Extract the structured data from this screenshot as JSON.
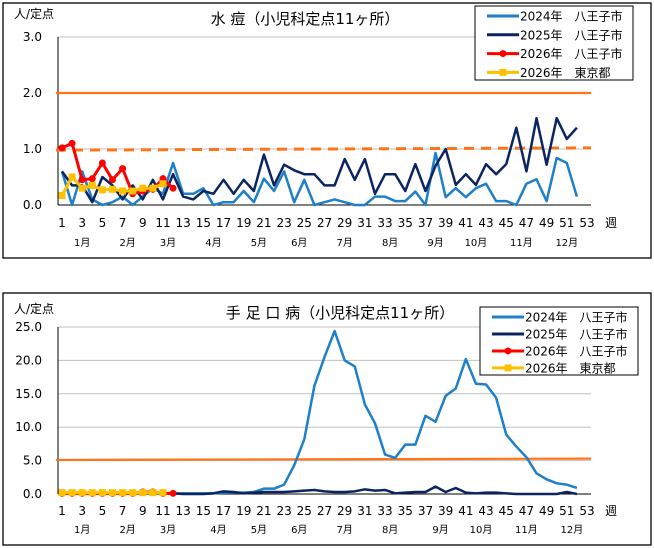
{
  "colors": {
    "y2024": "#1f7fc8",
    "y2025": "#0c2560",
    "y2026": "#ff0000",
    "tokyo": "#ffc000",
    "alert": "#ff7419",
    "grid": "#c0c0c0"
  },
  "chart_data": [
    {
      "type": "line",
      "title": "水 痘（小児科定点11ヶ所）",
      "ylabel": "人/定点",
      "xlabel": "週",
      "ylim": [
        0,
        3
      ],
      "yticks": [
        "0.0",
        "1.0",
        "2.0",
        "3.0"
      ],
      "ytick_values": [
        0,
        1,
        2,
        3
      ],
      "xticks": [
        1,
        3,
        5,
        7,
        9,
        11,
        13,
        15,
        17,
        19,
        21,
        23,
        25,
        27,
        29,
        31,
        33,
        35,
        37,
        39,
        41,
        43,
        45,
        47,
        49,
        51,
        53
      ],
      "xlim": [
        1,
        53
      ],
      "months": [
        {
          "label": "1月",
          "week": 3
        },
        {
          "label": "2月",
          "week": 7.5
        },
        {
          "label": "3月",
          "week": 11.5
        },
        {
          "label": "4月",
          "week": 16
        },
        {
          "label": "5月",
          "week": 20.5
        },
        {
          "label": "6月",
          "week": 24.5
        },
        {
          "label": "7月",
          "week": 29
        },
        {
          "label": "8月",
          "week": 33.5
        },
        {
          "label": "9月",
          "week": 38
        },
        {
          "label": "10月",
          "week": 42
        },
        {
          "label": "11月",
          "week": 46.5
        },
        {
          "label": "12月",
          "week": 51
        }
      ],
      "grid": true,
      "legend_position": "top-right",
      "thresholds": [
        {
          "kind": "solid",
          "start": 2.0,
          "end": 2.0
        },
        {
          "kind": "dashed",
          "start": 0.98,
          "end": 1.02
        }
      ],
      "series": [
        {
          "name": "2024年　八王子市",
          "key": "y2024",
          "marker": "none",
          "values": [
            0.6,
            0,
            0.6,
            0.1,
            0,
            0.05,
            0.15,
            0,
            0.15,
            0.3,
            0.2,
            0.75,
            0.2,
            0.2,
            0.3,
            0,
            0.05,
            0.05,
            0.25,
            0.05,
            0.47,
            0.25,
            0.6,
            0.05,
            0.45,
            0,
            0.05,
            0.1,
            0.05,
            0,
            0,
            0.15,
            0.15,
            0.07,
            0.07,
            0.24,
            0,
            0.93,
            0.14,
            0.3,
            0.14,
            0.3,
            0.38,
            0.07,
            0.07,
            0,
            0.38,
            0.46,
            0.07,
            0.84,
            0.75,
            0.15
          ]
        },
        {
          "name": "2025年　八王子市",
          "key": "y2025",
          "marker": "none",
          "values": [
            0.6,
            0.35,
            0.35,
            0.05,
            0.5,
            0.35,
            0.1,
            0.35,
            0.1,
            0.45,
            0.1,
            0.55,
            0.15,
            0.1,
            0.25,
            0.2,
            0.45,
            0.2,
            0.45,
            0.25,
            0.9,
            0.35,
            0.72,
            0.62,
            0.55,
            0.55,
            0.35,
            0.35,
            0.82,
            0.45,
            0.82,
            0.2,
            0.55,
            0.55,
            0.25,
            0.73,
            0.25,
            0.7,
            1.0,
            0.36,
            0.55,
            0.36,
            0.73,
            0.55,
            0.73,
            1.38,
            0.6,
            1.55,
            0.72,
            1.55,
            1.18,
            1.38
          ]
        },
        {
          "name": "2026年　八王子市",
          "key": "y2026",
          "marker": "circle",
          "values": [
            1.02,
            1.1,
            0.45,
            0.47,
            0.75,
            0.45,
            0.65,
            0.2,
            0.25,
            0.28,
            0.47,
            0.3
          ]
        },
        {
          "name": "2026年　東京都",
          "key": "tokyo",
          "marker": "square",
          "values": [
            0.17,
            0.5,
            0.3,
            0.35,
            0.27,
            0.28,
            0.25,
            0.25,
            0.3,
            0.3,
            0.38
          ]
        }
      ]
    },
    {
      "type": "line",
      "title": "手 足 口 病（小児科定点11ヶ所）",
      "ylabel": "人/定点",
      "xlabel": "週",
      "ylim": [
        0,
        25
      ],
      "yticks": [
        "0.0",
        "5.0",
        "10.0",
        "15.0",
        "20.0",
        "25.0"
      ],
      "ytick_values": [
        0,
        5,
        10,
        15,
        20,
        25
      ],
      "xticks": [
        1,
        3,
        5,
        7,
        9,
        11,
        13,
        15,
        17,
        19,
        21,
        23,
        25,
        27,
        29,
        31,
        33,
        35,
        37,
        39,
        41,
        43,
        45,
        47,
        49,
        51,
        53
      ],
      "xlim": [
        1,
        53
      ],
      "months": [
        {
          "label": "1月",
          "week": 3
        },
        {
          "label": "2月",
          "week": 7.5
        },
        {
          "label": "3月",
          "week": 11.5
        },
        {
          "label": "4月",
          "week": 16.5
        },
        {
          "label": "5月",
          "week": 20.5
        },
        {
          "label": "6月",
          "week": 24.5
        },
        {
          "label": "7月",
          "week": 29
        },
        {
          "label": "8月",
          "week": 33.5
        },
        {
          "label": "9月",
          "week": 38.5
        },
        {
          "label": "10月",
          "week": 42.5
        },
        {
          "label": "11月",
          "week": 47
        },
        {
          "label": "12月",
          "week": 51.5
        }
      ],
      "grid": true,
      "legend_position": "top-right",
      "thresholds": [
        {
          "kind": "solid",
          "start": 5.1,
          "end": 5.3
        }
      ],
      "series": [
        {
          "name": "2024年　八王子市",
          "key": "y2024",
          "marker": "none",
          "values": [
            0.1,
            0.1,
            0.1,
            0.1,
            0.1,
            0.1,
            0.1,
            0.1,
            0.1,
            0.1,
            0.1,
            0.1,
            0.1,
            0.1,
            0.1,
            0.1,
            0.2,
            0.2,
            0.2,
            0.3,
            0.8,
            0.8,
            1.4,
            4.3,
            8.2,
            16.2,
            20.5,
            24.4,
            20,
            19.1,
            13.4,
            10.6,
            5.9,
            5.4,
            7.4,
            7.4,
            11.7,
            10.8,
            14.7,
            15.8,
            20.2,
            16.5,
            16.4,
            14.4,
            8.9,
            7.1,
            5.5,
            3.1,
            2.2,
            1.6,
            1.4,
            0.9
          ]
        },
        {
          "name": "2025年　八王子市",
          "key": "y2025",
          "marker": "none",
          "values": [
            0.1,
            0.1,
            0.1,
            0.1,
            0.1,
            0.1,
            0.1,
            0.1,
            0.1,
            0.1,
            0.1,
            0.1,
            0,
            0,
            0,
            0.1,
            0.4,
            0.3,
            0.1,
            0.2,
            0.3,
            0.3,
            0.3,
            0.4,
            0.5,
            0.6,
            0.4,
            0.3,
            0.3,
            0.4,
            0.7,
            0.5,
            0.6,
            0.1,
            0.2,
            0.3,
            0.3,
            1.1,
            0.3,
            0.9,
            0.2,
            0.1,
            0.2,
            0.2,
            0.1,
            0,
            0,
            0,
            0,
            0,
            0.3,
            0
          ]
        },
        {
          "name": "2026年　八王子市",
          "key": "y2026",
          "marker": "circle",
          "values": [
            0.1,
            0.1,
            0.1,
            0.1,
            0.1,
            0.1,
            0.1,
            0.1,
            0.3,
            0.3,
            0.1,
            0.1
          ]
        },
        {
          "name": "2026年　東京都",
          "key": "tokyo",
          "marker": "square",
          "values": [
            0.2,
            0.2,
            0.2,
            0.2,
            0.2,
            0.2,
            0.2,
            0.2,
            0.2,
            0.2,
            0.2
          ]
        }
      ]
    }
  ]
}
